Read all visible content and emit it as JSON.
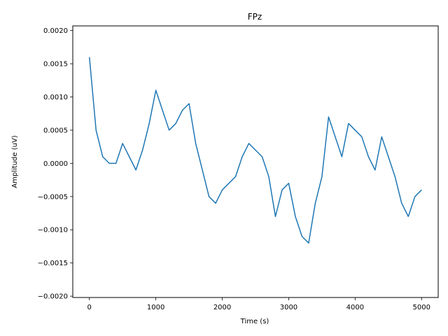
{
  "chart_data": {
    "type": "line",
    "title": "FPz",
    "xlabel": "Time (s)",
    "ylabel": "Amplitude (uV)",
    "xlim": [
      -250,
      5250
    ],
    "ylim": [
      -0.00202,
      0.00207
    ],
    "xticks": [
      0,
      1000,
      2000,
      3000,
      4000,
      5000
    ],
    "xtick_labels": [
      "0",
      "1000",
      "2000",
      "3000",
      "4000",
      "5000"
    ],
    "yticks": [
      -0.002,
      -0.0015,
      -0.001,
      -0.0005,
      0.0,
      0.0005,
      0.001,
      0.0015,
      0.002
    ],
    "ytick_labels": [
      "−0.0020",
      "−0.0015",
      "−0.0010",
      "−0.0005",
      "0.0000",
      "0.0005",
      "0.0010",
      "0.0015",
      "0.0020"
    ],
    "grid": false,
    "series": [
      {
        "color": "#1f77b4",
        "x": [
          0,
          100,
          200,
          300,
          400,
          500,
          600,
          700,
          800,
          900,
          1000,
          1100,
          1200,
          1300,
          1400,
          1500,
          1600,
          1700,
          1800,
          1900,
          2000,
          2100,
          2200,
          2300,
          2400,
          2500,
          2600,
          2700,
          2800,
          2900,
          3000,
          3100,
          3200,
          3300,
          3400,
          3500,
          3600,
          3700,
          3800,
          3900,
          4000,
          4100,
          4200,
          4300,
          4400,
          4500,
          4600,
          4700,
          4800,
          4900,
          5000
        ],
        "y": [
          0.0016,
          0.0005,
          0.0001,
          0.0,
          0.0,
          0.0003,
          0.0001,
          -0.0001,
          0.0002,
          0.0006,
          0.0011,
          0.0008,
          0.0005,
          0.0006,
          0.0008,
          0.0009,
          0.0003,
          -0.0001,
          -0.0005,
          -0.0006,
          -0.0004,
          -0.0003,
          -0.0002,
          0.0001,
          0.0003,
          0.0002,
          0.0001,
          -0.0002,
          -0.0008,
          -0.0004,
          -0.0003,
          -0.0008,
          -0.0011,
          -0.0012,
          -0.0006,
          -0.0002,
          0.0007,
          0.0004,
          0.0001,
          0.0006,
          0.0005,
          0.0004,
          0.0001,
          -0.0001,
          0.0004,
          0.0001,
          -0.0002,
          -0.0006,
          -0.0008,
          -0.0005,
          -0.0004
        ]
      }
    ]
  }
}
